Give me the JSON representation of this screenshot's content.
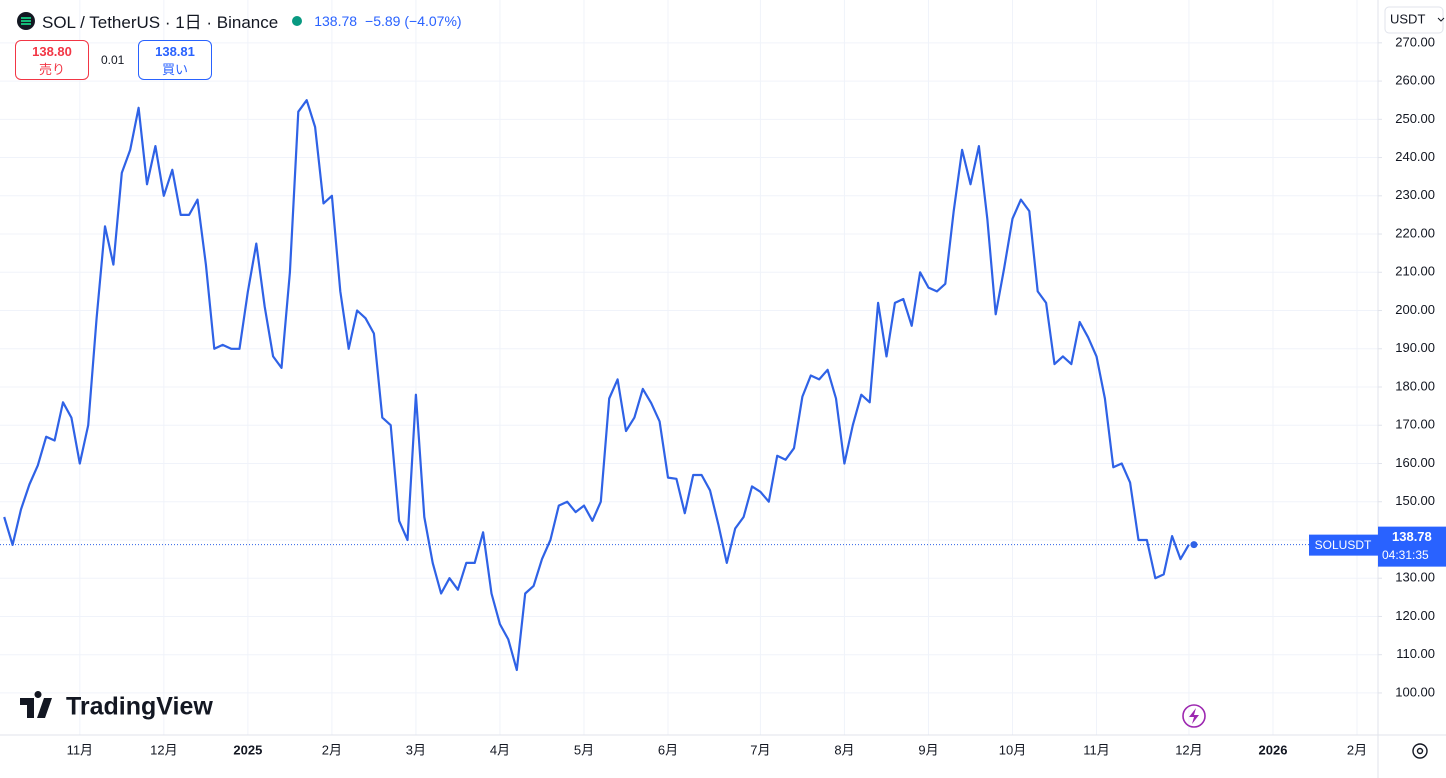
{
  "header": {
    "symbol": "SOL / TetherUS · 1日 · Binance",
    "last": "138.78",
    "change": "−5.89 (−4.07%)",
    "sell_price": "138.80",
    "sell_label": "売り",
    "spread": "0.01",
    "buy_price": "138.81",
    "buy_label": "買い",
    "currency": "USDT",
    "logo": "TradingView"
  },
  "chart_data": {
    "type": "line",
    "color": "#2f62e6",
    "grid": true,
    "categories": [
      null,
      null,
      null,
      null,
      null,
      null,
      null,
      null,
      null,
      "11月",
      null,
      null,
      null,
      null,
      null,
      null,
      null,
      null,
      null,
      "12月",
      null,
      null,
      null,
      null,
      null,
      null,
      null,
      null,
      null,
      "2025",
      null,
      null,
      null,
      null,
      null,
      null,
      null,
      null,
      null,
      "2月",
      null,
      null,
      null,
      null,
      null,
      null,
      null,
      null,
      null,
      "3月",
      null,
      null,
      null,
      null,
      null,
      null,
      null,
      null,
      null,
      "4月",
      null,
      null,
      null,
      null,
      null,
      null,
      null,
      null,
      null,
      "5月",
      null,
      null,
      null,
      null,
      null,
      null,
      null,
      null,
      null,
      "6月",
      null,
      null,
      null,
      null,
      null,
      null,
      null,
      null,
      null,
      null,
      "7月",
      null,
      null,
      null,
      null,
      null,
      null,
      null,
      null,
      null,
      "8月",
      null,
      null,
      null,
      null,
      null,
      null,
      null,
      null,
      null,
      "9月",
      null,
      null,
      null,
      null,
      null,
      null,
      null,
      null,
      null,
      "10月",
      null,
      null,
      null,
      null,
      null,
      null,
      null,
      null,
      null,
      "11月",
      null,
      null,
      null,
      null,
      null,
      null,
      null,
      null,
      null,
      null,
      "12月",
      null,
      null,
      null,
      null,
      null,
      null,
      null,
      null,
      null,
      "2026",
      null,
      null,
      null,
      null,
      null,
      null,
      null,
      null,
      null,
      "2月",
      null,
      null
    ],
    "values": [
      146,
      138.7,
      148,
      154.5,
      159.5,
      167,
      166,
      176,
      172,
      160,
      170,
      198,
      222,
      212,
      236,
      242,
      253,
      233,
      243,
      230,
      236.8,
      225,
      225,
      229,
      212,
      190,
      191,
      190,
      190,
      205,
      217.5,
      201,
      188,
      185,
      210,
      252,
      255,
      248,
      228,
      230,
      205,
      190,
      200,
      198,
      194,
      172,
      170,
      145,
      140,
      178,
      146,
      134,
      126,
      130,
      127,
      134,
      134,
      142,
      126,
      118,
      114,
      106,
      126,
      128,
      135,
      140,
      149,
      150,
      147.3,
      149,
      145,
      150,
      177,
      182,
      168.5,
      172,
      179.5,
      175.8,
      171,
      156.3,
      156,
      147,
      157,
      157,
      153,
      144,
      134,
      143,
      146,
      154,
      152.6,
      150,
      162,
      161,
      164,
      177.5,
      183,
      182,
      184.5,
      177,
      160,
      170,
      178,
      176,
      202,
      188,
      202,
      203,
      196,
      210,
      206,
      205,
      207,
      226,
      242,
      233,
      243,
      224,
      199,
      211,
      224,
      229,
      226,
      205,
      202,
      186,
      188,
      186,
      197,
      193,
      188,
      177,
      159,
      160,
      155,
      140,
      140,
      130,
      131,
      141,
      135,
      138.78,
      null,
      null,
      null,
      null,
      null,
      null,
      null,
      null,
      null,
      null,
      null,
      null,
      null,
      null,
      null,
      null,
      null,
      null,
      null,
      null,
      null,
      null
    ],
    "ylim": [
      89,
      281.2
    ],
    "yticks": [
      {
        "value": 100,
        "label": "100.00"
      },
      {
        "value": 110,
        "label": "110.00"
      },
      {
        "value": 120,
        "label": "120.00"
      },
      {
        "value": 130,
        "label": "130.00"
      },
      {
        "value": 140,
        "label": "140.00"
      },
      {
        "value": 150,
        "label": "150.00"
      },
      {
        "value": 160,
        "label": "160.00"
      },
      {
        "value": 170,
        "label": "170.00"
      },
      {
        "value": 180,
        "label": "180.00"
      },
      {
        "value": 190,
        "label": "190.00"
      },
      {
        "value": 200,
        "label": "200.00"
      },
      {
        "value": 210,
        "label": "210.00"
      },
      {
        "value": 220,
        "label": "220.00"
      },
      {
        "value": 230,
        "label": "230.00"
      },
      {
        "value": 240,
        "label": "240.00"
      },
      {
        "value": 250,
        "label": "250.00"
      },
      {
        "value": 260,
        "label": "260.00"
      },
      {
        "value": 270,
        "label": "270.00"
      }
    ],
    "last": {
      "symbol": "SOLUSDT",
      "value": 138.78,
      "countdown": "04:31:35"
    }
  }
}
